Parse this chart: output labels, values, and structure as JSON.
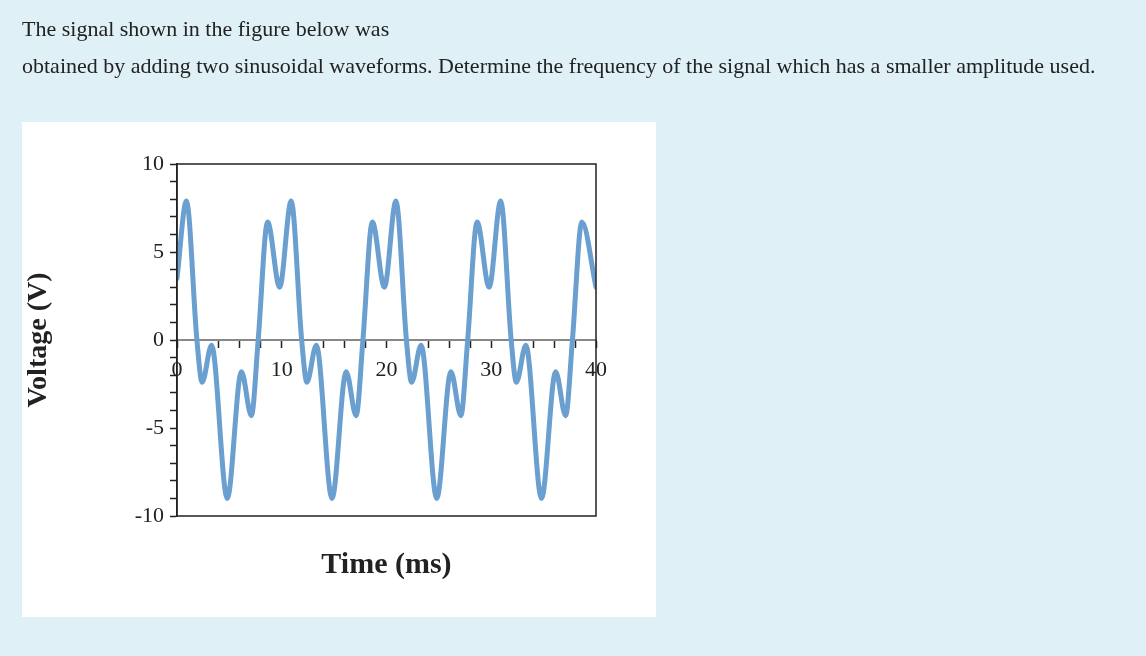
{
  "chart_data": {
    "type": "line",
    "title": "The signal shown in the figure below was\nobtained by adding two sinusoidal waveforms. Determine the frequency of the signal which has a smaller amplitude used.",
    "xlabel": "Time (ms)",
    "ylabel": "Voltage (V)",
    "xlim": [
      0,
      40
    ],
    "ylim": [
      -10,
      10
    ],
    "xticks": [
      0,
      {
        "value": 2,
        "label": null
      },
      {
        "value": 4,
        "label": null
      },
      {
        "value": 6,
        "label": null
      },
      {
        "value": 8,
        "label": null
      },
      10,
      {
        "value": 12,
        "label": null
      },
      {
        "value": 14,
        "label": null
      },
      {
        "value": 16,
        "label": null
      },
      {
        "value": 18,
        "label": null
      },
      20,
      {
        "value": 22,
        "label": null
      },
      {
        "value": 24,
        "label": null
      },
      {
        "value": 26,
        "label": null
      },
      {
        "value": 28,
        "label": null
      },
      30,
      {
        "value": 32,
        "label": null
      },
      {
        "value": 34,
        "label": null
      },
      {
        "value": 36,
        "label": null
      },
      {
        "value": 38,
        "label": null
      },
      40
    ],
    "yticks": [
      -10,
      {
        "value": -9,
        "label": null
      },
      {
        "value": -8,
        "label": null
      },
      {
        "value": -7,
        "label": null
      },
      {
        "value": -6,
        "label": null
      },
      -5,
      {
        "value": -4,
        "label": null
      },
      {
        "value": -3,
        "label": null
      },
      {
        "value": -2,
        "label": null
      },
      {
        "value": -1,
        "label": null
      },
      0,
      {
        "value": 1,
        "label": null
      },
      {
        "value": 2,
        "label": null
      },
      {
        "value": 3,
        "label": null
      },
      {
        "value": 4,
        "label": null
      },
      5,
      {
        "value": 6,
        "label": null
      },
      {
        "value": 7,
        "label": null
      },
      {
        "value": 8,
        "label": null
      },
      {
        "value": 9,
        "label": null
      },
      10
    ],
    "grid": false,
    "legend": false,
    "marker": "none",
    "line_style": "solid",
    "series": [
      {
        "color": "#6a9fd0",
        "x": [
          0,
          0.9,
          1.9,
          2.4,
          3.3,
          4.8,
          6.15,
          7.1,
          7.75,
          8.65,
          9.8,
          10.9,
          11.9,
          12.4,
          13.3,
          14.8,
          16.15,
          17.1,
          17.75,
          18.65,
          19.8,
          20.9,
          21.9,
          22.4,
          23.3,
          24.8,
          26.15,
          27.1,
          27.75,
          28.65,
          29.8,
          30.9,
          31.9,
          32.4,
          33.3,
          34.8,
          36.15,
          37.1,
          37.75,
          38.65,
          40
        ],
        "values": [
          3.5,
          7.9,
          0,
          -2.4,
          -0.3,
          -9.0,
          -1.8,
          -4.3,
          0,
          6.7,
          3.0,
          7.9,
          0,
          -2.4,
          -0.3,
          -9.0,
          -1.8,
          -4.3,
          0,
          6.7,
          3.0,
          7.9,
          0,
          -2.4,
          -0.3,
          -9.0,
          -1.8,
          -4.3,
          0,
          6.7,
          3.0,
          7.9,
          0,
          -2.4,
          -0.3,
          -9.0,
          -1.8,
          -4.3,
          0,
          6.7,
          3.0
        ]
      }
    ]
  }
}
